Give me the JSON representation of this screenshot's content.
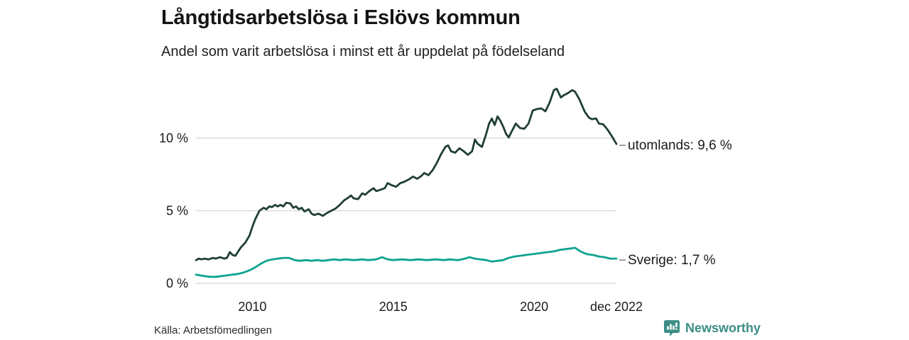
{
  "header": {
    "title": "Långtidsarbetslösa i Eslövs kommun",
    "subtitle": "Andel som varit arbetslösa i minst ett år uppdelat på födelseland"
  },
  "footer": {
    "source": "Källa: Arbetsfömedlingen",
    "brand": "Newsworthy",
    "brand_icon": "newsworthy-speech-bubble-bar-chart-icon",
    "brand_color": "#3b8d85"
  },
  "colors": {
    "series_utomlands": "#1f3e37",
    "series_sverige": "#0da38e",
    "grid": "#dcdcdc",
    "tick_text": "#1a1a1a",
    "annotation_text": "#1a1a1a",
    "annotation_dash": "#8a8a8a"
  },
  "chart_data": {
    "type": "line",
    "title": "Långtidsarbetslösa i Eslövs kommun",
    "subtitle": "Andel som varit arbetslösa i minst ett år uppdelat på födelseland",
    "unit": "percent",
    "xlim": [
      2008.0,
      2022.92
    ],
    "ylim": [
      0,
      14
    ],
    "grid": "horizontal",
    "legend_position": "end-of-line annotations, right side",
    "y_ticks": [
      {
        "value": 0,
        "label": "0 %"
      },
      {
        "value": 5,
        "label": "5 %"
      },
      {
        "value": 10,
        "label": "10 %"
      }
    ],
    "x_ticks": [
      {
        "value": 2010,
        "label": "2010"
      },
      {
        "value": 2015,
        "label": "2015"
      },
      {
        "value": 2020,
        "label": "2020"
      },
      {
        "value": 2022.92,
        "label": "dec 2022"
      }
    ],
    "series": [
      {
        "name": "utomlands",
        "label": "utomlands: 9,6 %",
        "end_value": 9.6,
        "color": "#1f3e37",
        "points": [
          [
            2008.0,
            1.6
          ],
          [
            2008.1,
            1.7
          ],
          [
            2008.2,
            1.65
          ],
          [
            2008.3,
            1.7
          ],
          [
            2008.45,
            1.65
          ],
          [
            2008.6,
            1.75
          ],
          [
            2008.7,
            1.7
          ],
          [
            2008.85,
            1.8
          ],
          [
            2009.0,
            1.7
          ],
          [
            2009.1,
            1.75
          ],
          [
            2009.2,
            2.15
          ],
          [
            2009.3,
            1.95
          ],
          [
            2009.4,
            1.9
          ],
          [
            2009.5,
            2.2
          ],
          [
            2009.6,
            2.5
          ],
          [
            2009.75,
            2.8
          ],
          [
            2009.9,
            3.3
          ],
          [
            2010.0,
            3.9
          ],
          [
            2010.1,
            4.4
          ],
          [
            2010.25,
            5.0
          ],
          [
            2010.4,
            5.2
          ],
          [
            2010.5,
            5.1
          ],
          [
            2010.6,
            5.3
          ],
          [
            2010.7,
            5.25
          ],
          [
            2010.8,
            5.4
          ],
          [
            2010.9,
            5.3
          ],
          [
            2011.0,
            5.4
          ],
          [
            2011.1,
            5.3
          ],
          [
            2011.2,
            5.55
          ],
          [
            2011.35,
            5.5
          ],
          [
            2011.45,
            5.2
          ],
          [
            2011.55,
            5.3
          ],
          [
            2011.65,
            5.1
          ],
          [
            2011.75,
            5.2
          ],
          [
            2011.85,
            4.95
          ],
          [
            2012.0,
            5.1
          ],
          [
            2012.1,
            4.8
          ],
          [
            2012.2,
            4.7
          ],
          [
            2012.35,
            4.8
          ],
          [
            2012.5,
            4.65
          ],
          [
            2012.65,
            4.85
          ],
          [
            2012.8,
            5.0
          ],
          [
            2012.95,
            5.15
          ],
          [
            2013.1,
            5.4
          ],
          [
            2013.25,
            5.7
          ],
          [
            2013.4,
            5.9
          ],
          [
            2013.5,
            6.05
          ],
          [
            2013.6,
            5.85
          ],
          [
            2013.75,
            5.8
          ],
          [
            2013.9,
            6.2
          ],
          [
            2014.0,
            6.1
          ],
          [
            2014.15,
            6.35
          ],
          [
            2014.3,
            6.55
          ],
          [
            2014.4,
            6.35
          ],
          [
            2014.55,
            6.45
          ],
          [
            2014.7,
            6.55
          ],
          [
            2014.8,
            6.9
          ],
          [
            2014.95,
            6.75
          ],
          [
            2015.1,
            6.65
          ],
          [
            2015.25,
            6.9
          ],
          [
            2015.4,
            7.0
          ],
          [
            2015.55,
            7.15
          ],
          [
            2015.7,
            7.35
          ],
          [
            2015.85,
            7.2
          ],
          [
            2016.0,
            7.4
          ],
          [
            2016.1,
            7.6
          ],
          [
            2016.25,
            7.45
          ],
          [
            2016.4,
            7.8
          ],
          [
            2016.55,
            8.3
          ],
          [
            2016.7,
            8.9
          ],
          [
            2016.85,
            9.4
          ],
          [
            2016.95,
            9.5
          ],
          [
            2017.05,
            9.1
          ],
          [
            2017.2,
            9.0
          ],
          [
            2017.35,
            9.3
          ],
          [
            2017.5,
            9.1
          ],
          [
            2017.65,
            8.85
          ],
          [
            2017.8,
            9.1
          ],
          [
            2017.9,
            9.9
          ],
          [
            2018.0,
            9.6
          ],
          [
            2018.15,
            9.4
          ],
          [
            2018.3,
            10.3
          ],
          [
            2018.4,
            11.0
          ],
          [
            2018.5,
            11.35
          ],
          [
            2018.6,
            10.9
          ],
          [
            2018.7,
            11.5
          ],
          [
            2018.8,
            11.2
          ],
          [
            2018.9,
            10.8
          ],
          [
            2019.0,
            10.3
          ],
          [
            2019.1,
            10.05
          ],
          [
            2019.2,
            10.45
          ],
          [
            2019.35,
            11.0
          ],
          [
            2019.5,
            10.7
          ],
          [
            2019.65,
            10.65
          ],
          [
            2019.8,
            11.0
          ],
          [
            2019.95,
            11.9
          ],
          [
            2020.1,
            12.0
          ],
          [
            2020.25,
            12.05
          ],
          [
            2020.4,
            11.85
          ],
          [
            2020.55,
            12.45
          ],
          [
            2020.7,
            13.3
          ],
          [
            2020.8,
            13.4
          ],
          [
            2020.95,
            12.8
          ],
          [
            2021.05,
            12.95
          ],
          [
            2021.2,
            13.1
          ],
          [
            2021.35,
            13.3
          ],
          [
            2021.45,
            13.2
          ],
          [
            2021.6,
            12.7
          ],
          [
            2021.7,
            12.25
          ],
          [
            2021.8,
            11.8
          ],
          [
            2021.95,
            11.4
          ],
          [
            2022.05,
            11.3
          ],
          [
            2022.2,
            11.35
          ],
          [
            2022.3,
            11.0
          ],
          [
            2022.45,
            10.95
          ],
          [
            2022.6,
            10.6
          ],
          [
            2022.75,
            10.15
          ],
          [
            2022.92,
            9.6
          ]
        ]
      },
      {
        "name": "Sverige",
        "label": "Sverige: 1,7 %",
        "end_value": 1.7,
        "color": "#0da38e",
        "points": [
          [
            2008.0,
            0.6
          ],
          [
            2008.15,
            0.55
          ],
          [
            2008.3,
            0.5
          ],
          [
            2008.5,
            0.45
          ],
          [
            2008.7,
            0.45
          ],
          [
            2008.9,
            0.5
          ],
          [
            2009.1,
            0.55
          ],
          [
            2009.3,
            0.6
          ],
          [
            2009.5,
            0.65
          ],
          [
            2009.7,
            0.75
          ],
          [
            2009.9,
            0.9
          ],
          [
            2010.1,
            1.1
          ],
          [
            2010.3,
            1.35
          ],
          [
            2010.5,
            1.55
          ],
          [
            2010.7,
            1.65
          ],
          [
            2010.9,
            1.7
          ],
          [
            2011.1,
            1.75
          ],
          [
            2011.3,
            1.75
          ],
          [
            2011.5,
            1.6
          ],
          [
            2011.7,
            1.55
          ],
          [
            2011.9,
            1.6
          ],
          [
            2012.1,
            1.55
          ],
          [
            2012.3,
            1.6
          ],
          [
            2012.5,
            1.55
          ],
          [
            2012.7,
            1.6
          ],
          [
            2012.9,
            1.65
          ],
          [
            2013.1,
            1.6
          ],
          [
            2013.3,
            1.65
          ],
          [
            2013.6,
            1.6
          ],
          [
            2013.9,
            1.65
          ],
          [
            2014.1,
            1.6
          ],
          [
            2014.4,
            1.65
          ],
          [
            2014.6,
            1.8
          ],
          [
            2014.8,
            1.65
          ],
          [
            2015.0,
            1.6
          ],
          [
            2015.3,
            1.65
          ],
          [
            2015.6,
            1.6
          ],
          [
            2015.9,
            1.65
          ],
          [
            2016.2,
            1.6
          ],
          [
            2016.5,
            1.65
          ],
          [
            2016.8,
            1.6
          ],
          [
            2017.0,
            1.65
          ],
          [
            2017.3,
            1.6
          ],
          [
            2017.55,
            1.7
          ],
          [
            2017.7,
            1.8
          ],
          [
            2017.9,
            1.7
          ],
          [
            2018.1,
            1.65
          ],
          [
            2018.3,
            1.6
          ],
          [
            2018.5,
            1.5
          ],
          [
            2018.7,
            1.55
          ],
          [
            2018.9,
            1.6
          ],
          [
            2019.1,
            1.75
          ],
          [
            2019.3,
            1.85
          ],
          [
            2019.5,
            1.9
          ],
          [
            2019.7,
            1.95
          ],
          [
            2019.9,
            2.0
          ],
          [
            2020.1,
            2.05
          ],
          [
            2020.3,
            2.1
          ],
          [
            2020.5,
            2.15
          ],
          [
            2020.7,
            2.2
          ],
          [
            2020.9,
            2.3
          ],
          [
            2021.1,
            2.35
          ],
          [
            2021.3,
            2.4
          ],
          [
            2021.45,
            2.45
          ],
          [
            2021.6,
            2.25
          ],
          [
            2021.75,
            2.1
          ],
          [
            2021.9,
            2.0
          ],
          [
            2022.1,
            1.95
          ],
          [
            2022.3,
            1.85
          ],
          [
            2022.5,
            1.8
          ],
          [
            2022.7,
            1.7
          ],
          [
            2022.92,
            1.7
          ]
        ]
      }
    ]
  }
}
